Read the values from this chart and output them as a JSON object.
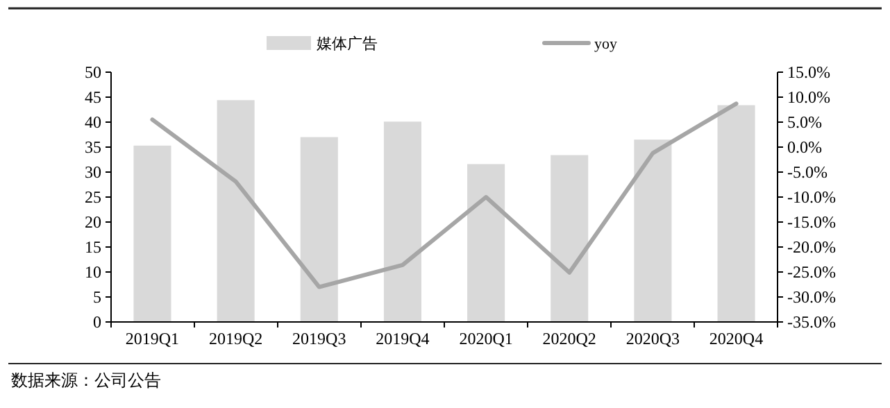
{
  "chart_data": {
    "type": "bar",
    "categories": [
      "2019Q1",
      "2019Q2",
      "2019Q3",
      "2019Q4",
      "2020Q1",
      "2020Q2",
      "2020Q3",
      "2020Q4"
    ],
    "series": [
      {
        "name": "媒体广告",
        "color": "#d9d9d9",
        "values": [
          35.3,
          44.4,
          37.0,
          40.1,
          31.6,
          33.4,
          36.5,
          43.4
        ]
      },
      {
        "name": "yoy",
        "type": "line",
        "axis": "y2",
        "color": "#a6a6a6",
        "values": [
          5.5,
          -6.9,
          -28.0,
          -23.6,
          -10.0,
          -25.1,
          -1.2,
          8.7
        ]
      }
    ],
    "ylim": [
      0,
      50
    ],
    "yticks": [
      0,
      5,
      10,
      15,
      20,
      25,
      30,
      35,
      40,
      45,
      50
    ],
    "y2lim": [
      -35,
      15
    ],
    "y2ticks": [
      {
        "value": -35,
        "label": "-35.0%"
      },
      {
        "value": -30,
        "label": "-30.0%"
      },
      {
        "value": -25,
        "label": "-25.0%"
      },
      {
        "value": -20,
        "label": "-20.0%"
      },
      {
        "value": -15,
        "label": "-15.0%"
      },
      {
        "value": -10,
        "label": "-10.0%"
      },
      {
        "value": -5,
        "label": "-5.0%"
      },
      {
        "value": 0,
        "label": "0.0%"
      },
      {
        "value": 5,
        "label": "5.0%"
      },
      {
        "value": 10,
        "label": "10.0%"
      },
      {
        "value": 15,
        "label": "15.0%"
      }
    ],
    "legend": "top",
    "annotations": [
      "数据来源：公司公告"
    ]
  }
}
